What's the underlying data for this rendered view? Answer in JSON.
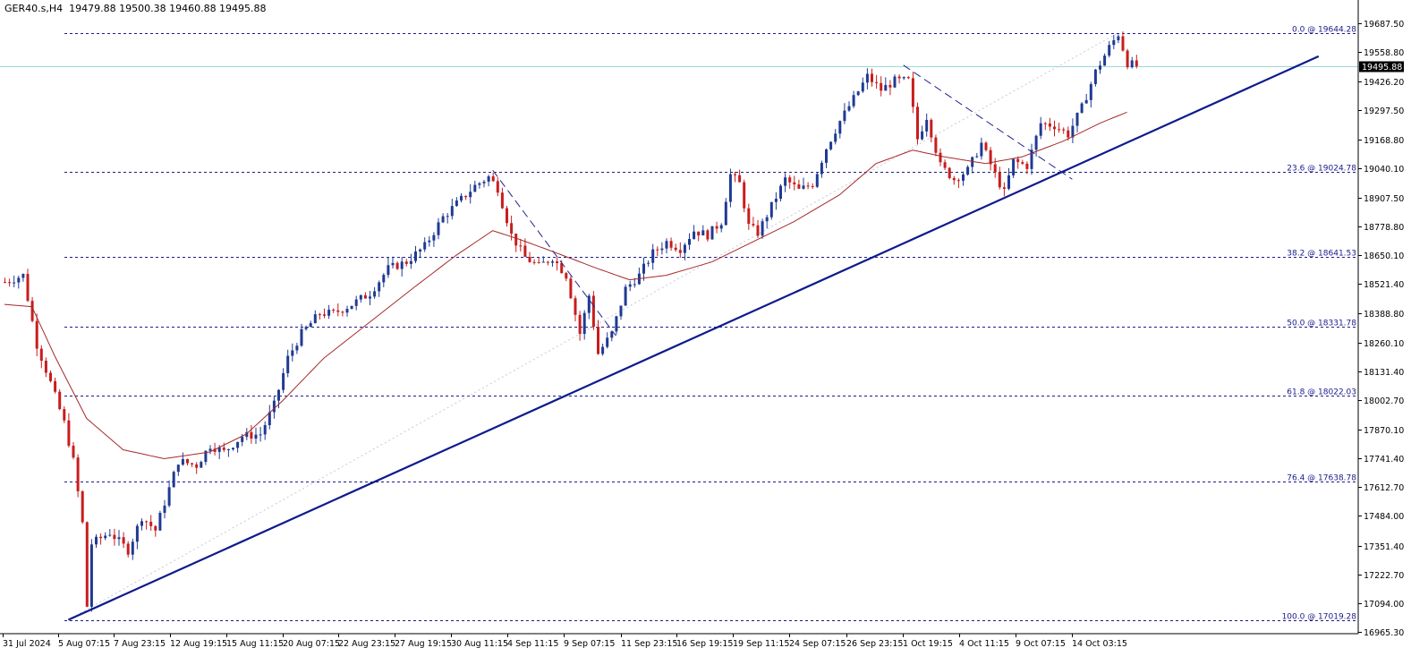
{
  "header": {
    "symbol": "GER40.s,H4",
    "ohlc": "19479.88 19500.38 19460.88 19495.88"
  },
  "colors": {
    "up": "#1f3a93",
    "down": "#c81d1d",
    "ma": "#a52a2a",
    "trend": "#0d1b8c",
    "fib": "#1a1a8c",
    "price_line": "#9ad8e0",
    "price_box": "#000000",
    "diag_dashed": "#23238e",
    "diag_dotted": "#c8c8d8"
  },
  "chart_data": {
    "type": "candlestick",
    "ylim": [
      16965.3,
      19728
    ],
    "y_ticks": [
      "19687.50",
      "19558.80",
      "19426.20",
      "19297.50",
      "19168.80",
      "19040.10",
      "18907.50",
      "18778.80",
      "18650.10",
      "18521.40",
      "18388.80",
      "18260.10",
      "18131.40",
      "18002.70",
      "17870.10",
      "17741.40",
      "17612.70",
      "17484.00",
      "17351.40",
      "17222.70",
      "17094.00",
      "16965.30"
    ],
    "x_labels": [
      "31 Jul 2024",
      "5 Aug 07:15",
      "7 Aug 23:15",
      "12 Aug 19:15",
      "15 Aug 11:15",
      "20 Aug 07:15",
      "22 Aug 23:15",
      "27 Aug 19:15",
      "30 Aug 11:15",
      "4 Sep 11:15",
      "9 Sep 07:15",
      "11 Sep 23:15",
      "16 Sep 19:15",
      "19 Sep 11:15",
      "24 Sep 07:15",
      "26 Sep 23:15",
      "1 Oct 19:15",
      "4 Oct 11:15",
      "9 Oct 07:15",
      "14 Oct 03:15"
    ],
    "current_price": "19495.88",
    "fib_levels": [
      {
        "label": "0.0 @ 19644.28",
        "value": 19644.28
      },
      {
        "label": "23.6 @ 19024.78",
        "value": 19024.78
      },
      {
        "label": "38.2 @ 18641.53",
        "value": 18641.53
      },
      {
        "label": "50.0 @ 18331.78",
        "value": 18331.78
      },
      {
        "label": "61.8 @ 18022.03",
        "value": 18022.03
      },
      {
        "label": "76.4 @ 17638.78",
        "value": 17638.78
      },
      {
        "label": "100.0 @ 17019.28",
        "value": 17019.28
      }
    ],
    "close_path": [
      [
        0,
        18530
      ],
      [
        4,
        18560
      ],
      [
        7,
        18250
      ],
      [
        10,
        18080
      ],
      [
        13,
        17900
      ],
      [
        15,
        17730
      ],
      [
        17,
        17450
      ],
      [
        18,
        17080
      ],
      [
        19,
        17360
      ],
      [
        23,
        17410
      ],
      [
        27,
        17330
      ],
      [
        30,
        17480
      ],
      [
        33,
        17420
      ],
      [
        38,
        17730
      ],
      [
        42,
        17710
      ],
      [
        45,
        17800
      ],
      [
        48,
        17770
      ],
      [
        52,
        17840
      ],
      [
        56,
        17850
      ],
      [
        59,
        17980
      ],
      [
        62,
        18190
      ],
      [
        65,
        18300
      ],
      [
        69,
        18390
      ],
      [
        72,
        18390
      ],
      [
        76,
        18430
      ],
      [
        80,
        18480
      ],
      [
        84,
        18590
      ],
      [
        88,
        18620
      ],
      [
        92,
        18690
      ],
      [
        96,
        18820
      ],
      [
        99,
        18880
      ],
      [
        103,
        18960
      ],
      [
        106,
        19000
      ],
      [
        108,
        18950
      ],
      [
        111,
        18740
      ],
      [
        114,
        18640
      ],
      [
        117,
        18600
      ],
      [
        120,
        18640
      ],
      [
        123,
        18560
      ],
      [
        126,
        18300
      ],
      [
        128,
        18470
      ],
      [
        130,
        18210
      ],
      [
        133,
        18300
      ],
      [
        136,
        18500
      ],
      [
        139,
        18560
      ],
      [
        142,
        18660
      ],
      [
        145,
        18710
      ],
      [
        148,
        18680
      ],
      [
        151,
        18760
      ],
      [
        154,
        18740
      ],
      [
        157,
        18800
      ],
      [
        159,
        19010
      ],
      [
        161,
        18970
      ],
      [
        163,
        18780
      ],
      [
        165,
        18750
      ],
      [
        168,
        18870
      ],
      [
        171,
        18990
      ],
      [
        174,
        18940
      ],
      [
        177,
        18970
      ],
      [
        180,
        19130
      ],
      [
        183,
        19250
      ],
      [
        186,
        19350
      ],
      [
        189,
        19450
      ],
      [
        192,
        19390
      ],
      [
        195,
        19430
      ],
      [
        198,
        19430
      ],
      [
        200,
        19170
      ],
      [
        202,
        19270
      ],
      [
        205,
        19050
      ],
      [
        208,
        18990
      ],
      [
        211,
        19030
      ],
      [
        214,
        19150
      ],
      [
        217,
        19010
      ],
      [
        219,
        18930
      ],
      [
        221,
        19070
      ],
      [
        224,
        19050
      ],
      [
        227,
        19240
      ],
      [
        230,
        19230
      ],
      [
        233,
        19190
      ],
      [
        236,
        19310
      ],
      [
        239,
        19470
      ],
      [
        242,
        19580
      ],
      [
        244,
        19640
      ],
      [
        246,
        19510
      ],
      [
        248,
        19496
      ]
    ],
    "ma_path": [
      [
        0,
        18430
      ],
      [
        6,
        18420
      ],
      [
        11,
        18200
      ],
      [
        18,
        17920
      ],
      [
        26,
        17780
      ],
      [
        35,
        17740
      ],
      [
        45,
        17770
      ],
      [
        53,
        17850
      ],
      [
        61,
        18000
      ],
      [
        70,
        18190
      ],
      [
        80,
        18350
      ],
      [
        90,
        18510
      ],
      [
        99,
        18650
      ],
      [
        107,
        18760
      ],
      [
        113,
        18720
      ],
      [
        121,
        18660
      ],
      [
        130,
        18590
      ],
      [
        137,
        18540
      ],
      [
        145,
        18560
      ],
      [
        155,
        18620
      ],
      [
        164,
        18710
      ],
      [
        173,
        18800
      ],
      [
        183,
        18920
      ],
      [
        191,
        19060
      ],
      [
        199,
        19120
      ],
      [
        206,
        19090
      ],
      [
        215,
        19060
      ],
      [
        223,
        19090
      ],
      [
        232,
        19160
      ],
      [
        240,
        19240
      ],
      [
        246,
        19290
      ]
    ],
    "trendline": {
      "from": [
        14,
        17019.28
      ],
      "to": [
        288,
        19540
      ]
    },
    "dashed_lines": [
      {
        "from": [
          107,
          19030
        ],
        "to": [
          134,
          18290
        ]
      },
      {
        "from": [
          197,
          19500
        ],
        "to": [
          234,
          18990
        ]
      }
    ],
    "dotted_line": {
      "from": [
        14,
        17019.28
      ],
      "to": [
        244,
        19644.28
      ]
    }
  }
}
